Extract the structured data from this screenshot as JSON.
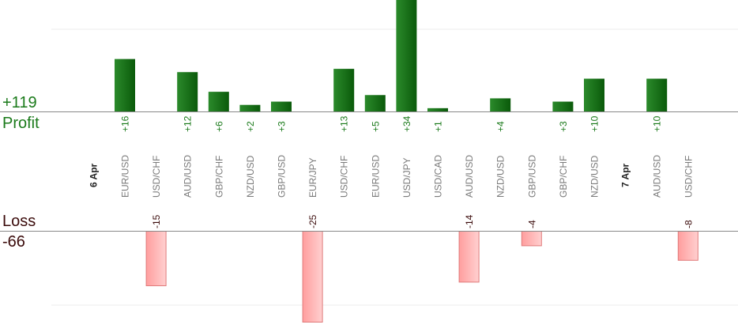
{
  "summary": {
    "profit_total": "+119",
    "profit_label": "Profit",
    "loss_label": "Loss",
    "loss_total": "-66"
  },
  "colors": {
    "profit_dark": "#0a5a0a",
    "profit_light": "#2b8a2b",
    "loss_fill": "#ffb3b3",
    "loss_stroke": "#e07a7a",
    "profit_text": "#1a7a1a",
    "loss_text": "#3a0a0a"
  },
  "chart_data": {
    "type": "bar",
    "profit_scale_max": 34,
    "loss_scale_max": 25,
    "items": [
      {
        "kind": "date",
        "label": "6 Apr"
      },
      {
        "kind": "trade",
        "pair": "EUR/USD",
        "value": 16,
        "value_label": "+16"
      },
      {
        "kind": "trade",
        "pair": "USD/CHF",
        "value": -15,
        "value_label": "-15"
      },
      {
        "kind": "trade",
        "pair": "AUD/USD",
        "value": 12,
        "value_label": "+12"
      },
      {
        "kind": "trade",
        "pair": "GBP/CHF",
        "value": 6,
        "value_label": "+6"
      },
      {
        "kind": "trade",
        "pair": "NZD/USD",
        "value": 2,
        "value_label": "+2"
      },
      {
        "kind": "trade",
        "pair": "GBP/USD",
        "value": 3,
        "value_label": "+3"
      },
      {
        "kind": "trade",
        "pair": "EUR/JPY",
        "value": -25,
        "value_label": "-25"
      },
      {
        "kind": "trade",
        "pair": "USD/CHF",
        "value": 13,
        "value_label": "+13"
      },
      {
        "kind": "trade",
        "pair": "EUR/USD",
        "value": 5,
        "value_label": "+5"
      },
      {
        "kind": "trade",
        "pair": "USD/JPY",
        "value": 34,
        "value_label": "+34"
      },
      {
        "kind": "trade",
        "pair": "USD/CAD",
        "value": 1,
        "value_label": "+1"
      },
      {
        "kind": "trade",
        "pair": "AUD/USD",
        "value": -14,
        "value_label": "-14"
      },
      {
        "kind": "trade",
        "pair": "NZD/USD",
        "value": 4,
        "value_label": "+4"
      },
      {
        "kind": "trade",
        "pair": "GBP/USD",
        "value": -4,
        "value_label": "-4"
      },
      {
        "kind": "trade",
        "pair": "GBP/CHF",
        "value": 3,
        "value_label": "+3"
      },
      {
        "kind": "trade",
        "pair": "NZD/USD",
        "value": 10,
        "value_label": "+10"
      },
      {
        "kind": "date",
        "label": "7 Apr"
      },
      {
        "kind": "trade",
        "pair": "AUD/USD",
        "value": 10,
        "value_label": "+10"
      },
      {
        "kind": "trade",
        "pair": "USD/CHF",
        "value": -8,
        "value_label": "-8"
      }
    ]
  }
}
